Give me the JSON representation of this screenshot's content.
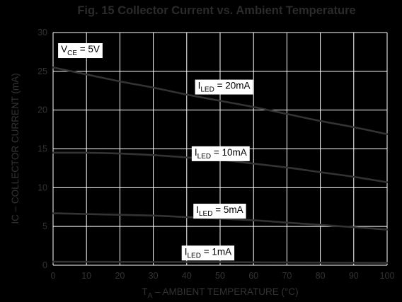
{
  "colors": {
    "background": "#000000",
    "plot_background": "#000000",
    "grid": "#ffffff",
    "curve": "#333333",
    "title": "#2b2b2b",
    "axis_text": "#333333",
    "label_box": "#ffffff",
    "label_text": "#000000"
  },
  "chart_data": {
    "type": "line",
    "title": "Fig. 15 Collector Current vs. Ambient Temperature",
    "xlabel": {
      "main": "T",
      "sub": "A",
      "rest": " – AMBIENT TEMPERATURE (°C)"
    },
    "ylabel": "IC – COLLECTOR CURRENT (mA)",
    "xlim": [
      0,
      100
    ],
    "ylim": [
      0,
      30
    ],
    "xticks": [
      0,
      10,
      20,
      30,
      40,
      50,
      60,
      70,
      80,
      90,
      100
    ],
    "yticks": [
      0,
      5,
      10,
      15,
      20,
      25,
      30
    ],
    "grid": true,
    "legend": "none",
    "annotations": [
      {
        "id": "vce",
        "main": "V",
        "sub": "CE",
        "rest": " = 5V",
        "x": 1.5,
        "y": 27.9
      },
      {
        "id": "iled20",
        "main": "I",
        "sub": "LED",
        "rest": " = 20mA",
        "x": 42.5,
        "y": 23.2
      },
      {
        "id": "iled10",
        "main": "I",
        "sub": "LED",
        "rest": " = 10mA",
        "x": 41.5,
        "y": 14.6
      },
      {
        "id": "iled5",
        "main": "I",
        "sub": "LED",
        "rest": " = 5mA",
        "x": 42,
        "y": 7.2
      },
      {
        "id": "iled1",
        "main": "I",
        "sub": "LED",
        "rest": " = 1mA",
        "x": 38.5,
        "y": 1.8
      }
    ],
    "series": [
      {
        "name": "ILED = 20mA",
        "x": [
          0,
          10,
          20,
          30,
          40,
          50,
          60,
          70,
          80,
          90,
          100
        ],
        "y": [
          25.5,
          24.6,
          23.7,
          22.9,
          22.0,
          21.2,
          20.4,
          19.5,
          18.6,
          17.8,
          16.9
        ]
      },
      {
        "name": "ILED = 10mA",
        "x": [
          0,
          10,
          20,
          30,
          40,
          50,
          60,
          70,
          80,
          90,
          100
        ],
        "y": [
          14.5,
          14.5,
          14.4,
          14.2,
          13.9,
          13.6,
          13.1,
          12.6,
          12.0,
          11.4,
          10.7
        ]
      },
      {
        "name": "ILED = 5mA",
        "x": [
          0,
          10,
          20,
          30,
          40,
          50,
          60,
          70,
          80,
          90,
          100
        ],
        "y": [
          6.7,
          6.6,
          6.5,
          6.4,
          6.2,
          6.0,
          5.8,
          5.5,
          5.2,
          4.9,
          4.6
        ]
      },
      {
        "name": "ILED = 1mA",
        "x": [
          0,
          10,
          20,
          30,
          40,
          50,
          60,
          70,
          80,
          90,
          100
        ],
        "y": [
          0.45,
          0.44,
          0.43,
          0.42,
          0.41,
          0.4,
          0.38,
          0.36,
          0.34,
          0.32,
          0.3
        ]
      }
    ]
  }
}
